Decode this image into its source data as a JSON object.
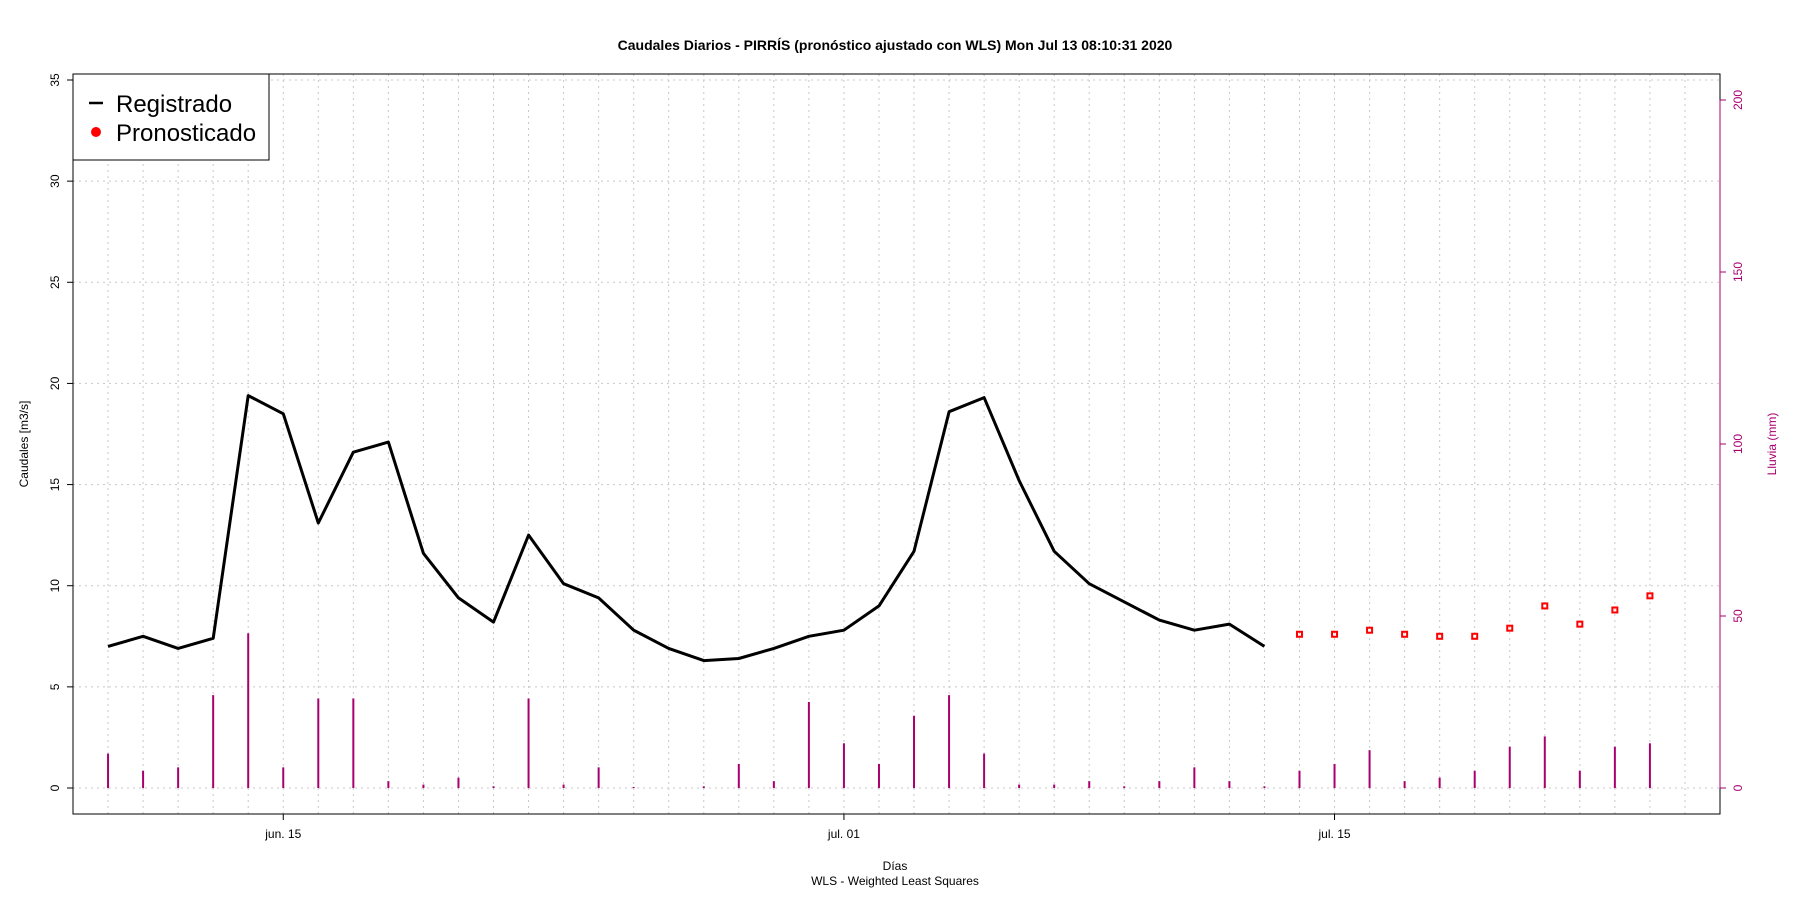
{
  "chart_data": {
    "type": "line",
    "title": "Caudales Diarios -  PIRRÍS  (pronóstico ajustado con WLS) Mon Jul 13 08:10:31 2020",
    "xlabel": "Días",
    "subtitle": "WLS - Weighted Least Squares",
    "ylabel": "Caudales [m3/s]",
    "ylabel_right": "Lluvia (mm)",
    "ylim": [
      0,
      35
    ],
    "ylim_right": [
      0,
      200
    ],
    "yticks": [
      0,
      5,
      10,
      15,
      20,
      25,
      30,
      35
    ],
    "yticks_right": [
      0,
      50,
      100,
      150,
      200
    ],
    "x_range": [
      "2020-06-09",
      "2020-07-26"
    ],
    "xticks": [
      {
        "date": "2020-06-15",
        "label": "jun. 15"
      },
      {
        "date": "2020-07-01",
        "label": "jul. 01"
      },
      {
        "date": "2020-07-15",
        "label": "jul. 15"
      }
    ],
    "grid": true,
    "legend_position": "top-left",
    "legend": [
      {
        "label": "Registrado",
        "symbol": "line",
        "color": "#000000"
      },
      {
        "label": "Pronosticado",
        "symbol": "point",
        "color": "#ff0000"
      }
    ],
    "rain_color": "#a8006f",
    "series": [
      {
        "name": "Registrado",
        "kind": "line",
        "color": "#000000",
        "x": [
          "2020-06-10",
          "2020-06-11",
          "2020-06-12",
          "2020-06-13",
          "2020-06-14",
          "2020-06-15",
          "2020-06-16",
          "2020-06-17",
          "2020-06-18",
          "2020-06-19",
          "2020-06-20",
          "2020-06-21",
          "2020-06-22",
          "2020-06-23",
          "2020-06-24",
          "2020-06-25",
          "2020-06-26",
          "2020-06-27",
          "2020-06-28",
          "2020-06-29",
          "2020-06-30",
          "2020-07-01",
          "2020-07-02",
          "2020-07-03",
          "2020-07-04",
          "2020-07-05",
          "2020-07-06",
          "2020-07-07",
          "2020-07-08",
          "2020-07-09",
          "2020-07-10",
          "2020-07-11",
          "2020-07-12",
          "2020-07-13"
        ],
        "y": [
          7.0,
          7.5,
          6.9,
          7.4,
          19.4,
          18.5,
          13.1,
          16.6,
          17.1,
          11.6,
          9.4,
          8.2,
          12.5,
          10.1,
          9.4,
          7.8,
          6.9,
          6.3,
          6.4,
          6.9,
          7.5,
          7.8,
          9.0,
          11.7,
          18.6,
          19.3,
          15.2,
          11.7,
          10.1,
          9.2,
          8.3,
          7.8,
          8.1,
          7.0
        ]
      },
      {
        "name": "Pronosticado",
        "kind": "points",
        "color": "#ff0000",
        "x": [
          "2020-07-14",
          "2020-07-15",
          "2020-07-16",
          "2020-07-17",
          "2020-07-18",
          "2020-07-19",
          "2020-07-20",
          "2020-07-21",
          "2020-07-22",
          "2020-07-23",
          "2020-07-24"
        ],
        "y": [
          7.6,
          7.6,
          7.8,
          7.6,
          7.5,
          7.5,
          7.9,
          9.0,
          8.1,
          8.8,
          9.5
        ]
      },
      {
        "name": "Lluvia",
        "kind": "bars",
        "axis": "right",
        "color": "#a8006f",
        "x": [
          "2020-06-10",
          "2020-06-11",
          "2020-06-12",
          "2020-06-13",
          "2020-06-14",
          "2020-06-15",
          "2020-06-16",
          "2020-06-17",
          "2020-06-18",
          "2020-06-19",
          "2020-06-20",
          "2020-06-21",
          "2020-06-22",
          "2020-06-23",
          "2020-06-24",
          "2020-06-25",
          "2020-06-26",
          "2020-06-27",
          "2020-06-28",
          "2020-06-29",
          "2020-06-30",
          "2020-07-01",
          "2020-07-02",
          "2020-07-03",
          "2020-07-04",
          "2020-07-05",
          "2020-07-06",
          "2020-07-07",
          "2020-07-08",
          "2020-07-09",
          "2020-07-10",
          "2020-07-11",
          "2020-07-12",
          "2020-07-13",
          "2020-07-14",
          "2020-07-15",
          "2020-07-16",
          "2020-07-17",
          "2020-07-18",
          "2020-07-19",
          "2020-07-20",
          "2020-07-21",
          "2020-07-22",
          "2020-07-23",
          "2020-07-24",
          "2020-07-25"
        ],
        "y": [
          10,
          5,
          6,
          27,
          45,
          6,
          26,
          26,
          2,
          1,
          3,
          0.5,
          26,
          1,
          6,
          0.3,
          0,
          0.5,
          7,
          2,
          25,
          13,
          7,
          21,
          27,
          10,
          1,
          1,
          2,
          0.5,
          2,
          6,
          2,
          0.5,
          5,
          7,
          11,
          2,
          3,
          5,
          12,
          15,
          5,
          12,
          13,
          0
        ]
      }
    ]
  }
}
